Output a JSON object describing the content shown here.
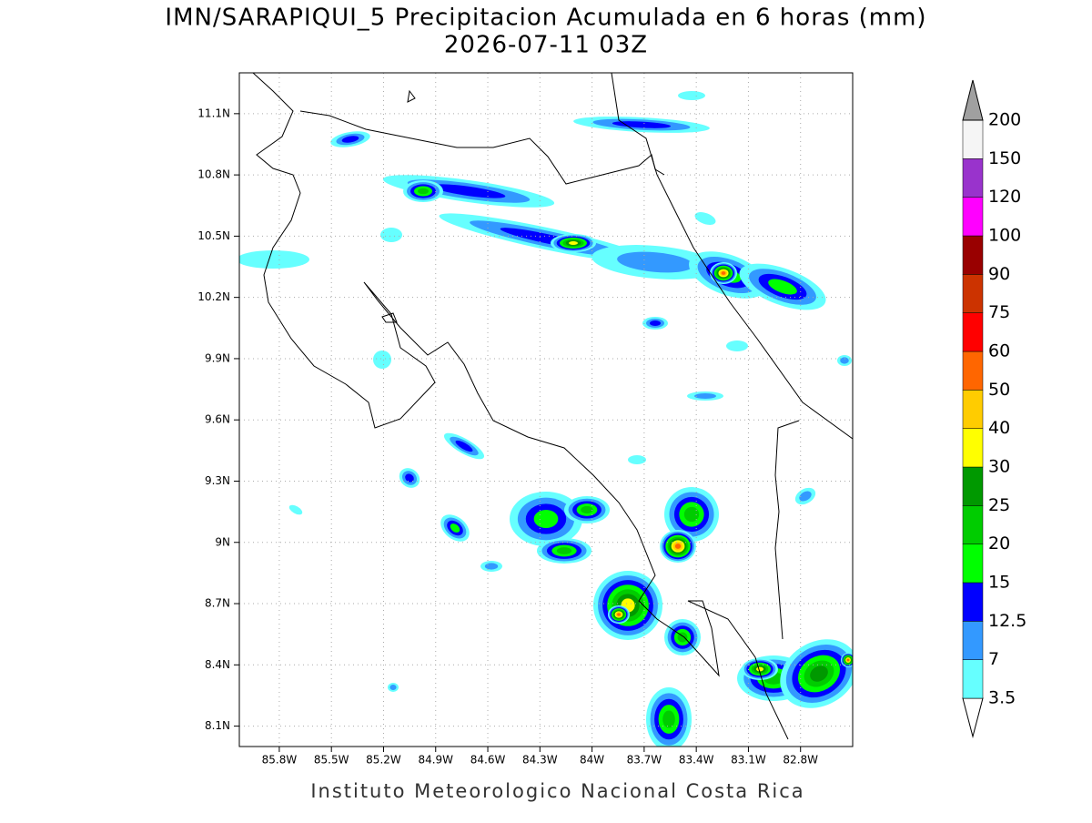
{
  "header": {
    "title": "IMN/SARAPIQUI_5 Precipitacion Acumulada en 6 horas (mm)",
    "subtitle": "2026-07-11 03Z"
  },
  "map": {
    "lon_range": [
      -86.03,
      -82.5
    ],
    "lat_range": [
      8.0,
      11.3
    ],
    "lat_ticks": [
      {
        "value": 8.1,
        "label": "8.1N"
      },
      {
        "value": 8.4,
        "label": "8.4N"
      },
      {
        "value": 8.7,
        "label": "8.7N"
      },
      {
        "value": 9.0,
        "label": "9N"
      },
      {
        "value": 9.3,
        "label": "9.3N"
      },
      {
        "value": 9.6,
        "label": "9.6N"
      },
      {
        "value": 9.9,
        "label": "9.9N"
      },
      {
        "value": 10.2,
        "label": "10.2N"
      },
      {
        "value": 10.5,
        "label": "10.5N"
      },
      {
        "value": 10.8,
        "label": "10.8N"
      },
      {
        "value": 11.1,
        "label": "11.1N"
      }
    ],
    "lon_ticks": [
      {
        "value": -85.8,
        "label": "85.8W"
      },
      {
        "value": -85.5,
        "label": "85.5W"
      },
      {
        "value": -85.2,
        "label": "85.2W"
      },
      {
        "value": -84.9,
        "label": "84.9W"
      },
      {
        "value": -84.6,
        "label": "84.6W"
      },
      {
        "value": -84.3,
        "label": "84.3W"
      },
      {
        "value": -84.0,
        "label": "84W"
      },
      {
        "value": -83.7,
        "label": "83.7W"
      },
      {
        "value": -83.4,
        "label": "83.4W"
      },
      {
        "value": -83.1,
        "label": "83.1W"
      },
      {
        "value": -82.8,
        "label": "82.8W"
      }
    ],
    "grid": true
  },
  "colorbar": {
    "levels": [
      3.5,
      7,
      12.5,
      15,
      20,
      25,
      30,
      40,
      50,
      60,
      75,
      90,
      100,
      120,
      150,
      200
    ],
    "colors": [
      "#ffffff",
      "#66ffff",
      "#3399ff",
      "#0000ff",
      "#00ff00",
      "#00cc00",
      "#009900",
      "#ffff00",
      "#ffcc00",
      "#ff6600",
      "#ff0000",
      "#cc3300",
      "#990000",
      "#ff00ff",
      "#9933cc",
      "#f5f5f5",
      "#a0a0a0"
    ]
  },
  "footer": "Instituto Meteorologico Nacional Costa Rica"
}
